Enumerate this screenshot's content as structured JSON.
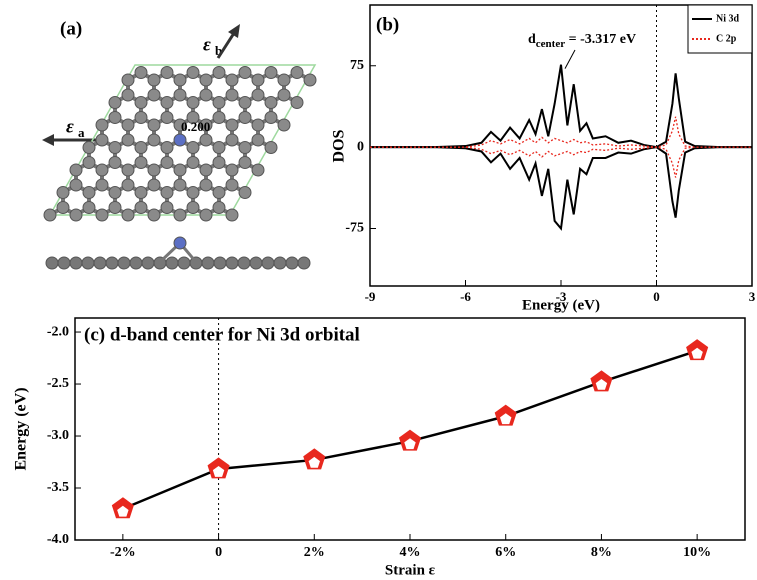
{
  "structure": {
    "label": "(a)",
    "strain_b": {
      "symbol": "ε",
      "subscript": "b"
    },
    "strain_a": {
      "symbol": "ε",
      "subscript": "a"
    },
    "charge_label": "0.200"
  },
  "chart_data": [
    {
      "type": "line",
      "title": "(b)",
      "xlabel": "Energy (eV)",
      "ylabel": "DOS",
      "annotation": {
        "main": "d",
        "sub": "center",
        "rest": " = -3.317 eV"
      },
      "x": [
        -9,
        -7,
        -6,
        -5.5,
        -5.2,
        -4.9,
        -4.6,
        -4.3,
        -4.0,
        -3.8,
        -3.6,
        -3.4,
        -3.2,
        -3.0,
        -2.8,
        -2.6,
        -2.4,
        -2.2,
        -2.0,
        -1.6,
        -1.2,
        -0.8,
        -0.4,
        0,
        0.3,
        0.5,
        0.6,
        0.7,
        0.9,
        1.2,
        2,
        3
      ],
      "series": [
        {
          "name": "Ni 3d",
          "color": "#000000",
          "dash": false,
          "values": [
            0,
            0,
            1,
            4,
            14,
            6,
            18,
            8,
            25,
            12,
            35,
            10,
            40,
            76,
            20,
            58,
            15,
            22,
            8,
            10,
            4,
            6,
            2,
            0,
            5,
            40,
            68,
            45,
            5,
            1,
            0,
            0
          ],
          "values_down": [
            0,
            0,
            -1,
            -4,
            -14,
            -6,
            -20,
            -10,
            -30,
            -15,
            -45,
            -20,
            -68,
            -75,
            -30,
            -62,
            -20,
            -25,
            -10,
            -10,
            -5,
            -6,
            -2,
            0,
            -6,
            -50,
            -65,
            -40,
            -5,
            -1,
            0,
            0
          ]
        },
        {
          "name": "C 2p",
          "color": "#e8281e",
          "dash": true,
          "values": [
            0,
            0,
            0,
            2,
            6,
            3,
            7,
            3,
            8,
            4,
            9,
            4,
            8,
            6,
            4,
            7,
            4,
            5,
            2,
            3,
            1,
            2,
            1,
            0,
            2,
            15,
            28,
            12,
            1,
            0,
            0,
            0
          ],
          "values_down": [
            0,
            0,
            0,
            -2,
            -6,
            -3,
            -7,
            -3,
            -8,
            -4,
            -9,
            -4,
            -8,
            -6,
            -4,
            -7,
            -4,
            -5,
            -2,
            -3,
            -1,
            -2,
            -1,
            0,
            -2,
            -15,
            -28,
            -12,
            -1,
            0,
            0,
            0
          ]
        }
      ],
      "xlim": [
        -9,
        3
      ],
      "xticks": [
        -9,
        -6,
        -3,
        0,
        3
      ],
      "ylim": [
        -128,
        131
      ],
      "yticks": [
        75,
        0,
        -75
      ],
      "fermi_level": 0,
      "legend": "top-right"
    },
    {
      "type": "line",
      "title": "(c) d-band center for Ni 3d orbital",
      "xlabel": "Strain ε",
      "ylabel": "Energy (eV)",
      "categories": [
        "-2%",
        "0",
        "2%",
        "4%",
        "6%",
        "8%",
        "10%"
      ],
      "values": [
        -3.7,
        -3.317,
        -3.23,
        -3.05,
        -2.81,
        -2.48,
        -2.18
      ],
      "color": "#e8281e",
      "marker": "pentagon",
      "reference_category": "0",
      "ylim": [
        -4.0,
        -1.865
      ],
      "yticks": [
        {
          "value": -2.0,
          "label": "-2.0"
        },
        {
          "value": -2.5,
          "label": "-2.5"
        },
        {
          "value": -3.0,
          "label": "-3.0"
        },
        {
          "value": -3.5,
          "label": "-3.5"
        },
        {
          "value": -4.0,
          "label": "-4.0"
        }
      ]
    }
  ]
}
